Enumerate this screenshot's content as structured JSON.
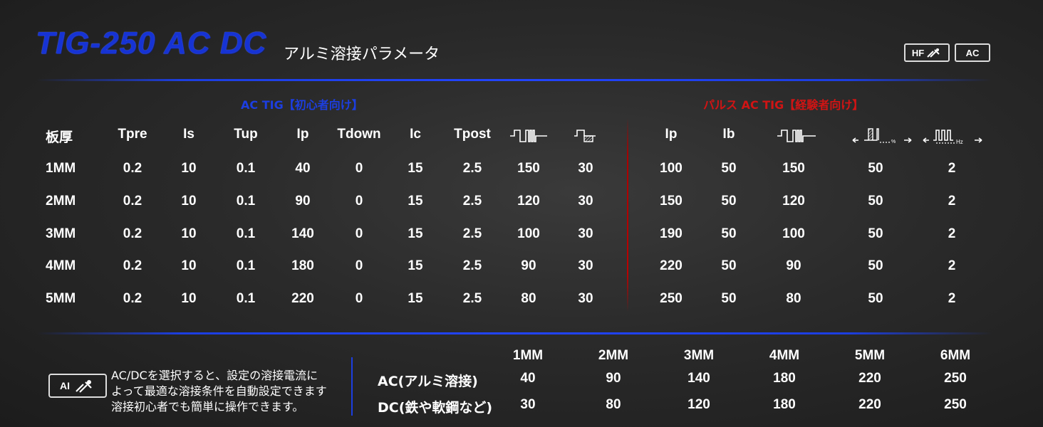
{
  "title": {
    "main": "TIG-250 AC DC",
    "sub": "アルミ溶接パラメータ"
  },
  "badges": {
    "hf": "HF",
    "ac": "AC"
  },
  "sections": {
    "ac_tig": "AC TIG【初心者向け】",
    "pulse_ac_tig": "パルス AC TIG【経験者向け】"
  },
  "colors": {
    "accent_blue": "#1c3ee0",
    "accent_red": "#d01414",
    "background": "#2a2a2a"
  },
  "table": {
    "headers": [
      "板厚",
      "Tpre",
      "Is",
      "Tup",
      "Ip",
      "Tdown",
      "Ic",
      "Tpost",
      "ac-frequency-icon",
      "ac-balance-icon",
      "Ip",
      "Ib",
      "pulse-frequency-icon",
      "duty-percent-icon",
      "pulse-hz-icon"
    ],
    "icon_labels": {
      "percent": "%",
      "hz": "Hz"
    },
    "rows": [
      [
        "1MM",
        "0.2",
        "10",
        "0.1",
        "40",
        "0",
        "15",
        "2.5",
        "150",
        "30",
        "100",
        "50",
        "150",
        "50",
        "2"
      ],
      [
        "2MM",
        "0.2",
        "10",
        "0.1",
        "90",
        "0",
        "15",
        "2.5",
        "120",
        "30",
        "150",
        "50",
        "120",
        "50",
        "2"
      ],
      [
        "3MM",
        "0.2",
        "10",
        "0.1",
        "140",
        "0",
        "15",
        "2.5",
        "100",
        "30",
        "190",
        "50",
        "100",
        "50",
        "2"
      ],
      [
        "4MM",
        "0.2",
        "10",
        "0.1",
        "180",
        "0",
        "15",
        "2.5",
        "90",
        "30",
        "220",
        "50",
        "90",
        "50",
        "2"
      ],
      [
        "5MM",
        "0.2",
        "10",
        "0.1",
        "220",
        "0",
        "15",
        "2.5",
        "80",
        "30",
        "250",
        "50",
        "80",
        "50",
        "2"
      ]
    ]
  },
  "ai": {
    "badge": "AI",
    "note_lines": [
      "AC/DCを選択すると、設定の溶接電流に",
      "よって最適な溶接条件を自動設定できます",
      "溶接初心者でも簡単に操作できます。"
    ]
  },
  "bottom_table": {
    "headers": [
      "1MM",
      "2MM",
      "3MM",
      "4MM",
      "5MM",
      "6MM"
    ],
    "rows": [
      {
        "label": "AC(アルミ溶接)",
        "values": [
          "40",
          "90",
          "140",
          "180",
          "220",
          "250"
        ]
      },
      {
        "label": "DC(鉄や軟鋼など)",
        "values": [
          "30",
          "80",
          "120",
          "180",
          "220",
          "250"
        ]
      }
    ]
  }
}
